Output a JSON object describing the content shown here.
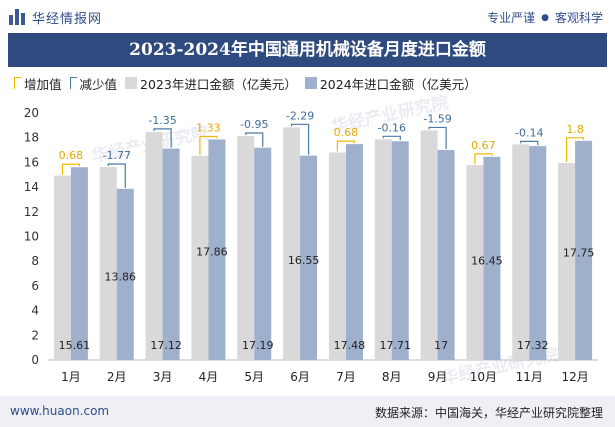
{
  "header": {
    "brand": "华经情报网",
    "tagline_1": "专业严谨",
    "tagline_2": "客观科学"
  },
  "colors": {
    "title_bg": "#2e4a7e",
    "bar_2023": "#d9d9d9",
    "bar_2024": "#9fb0cc",
    "increase": "#f2b800",
    "decrease": "#4b7ba6"
  },
  "legend": {
    "increase": "增加值",
    "decrease": "减少值",
    "series_2023": "2023年进口金额（亿美元）",
    "series_2024": "2024年进口金额（亿美元）"
  },
  "watermark": "华经产业研究院",
  "chart_data": {
    "type": "bar",
    "title": "2023-2024年中国通用机械设备月度进口金额",
    "categories": [
      "1月",
      "2月",
      "3月",
      "4月",
      "5月",
      "6月",
      "7月",
      "8月",
      "9月",
      "10月",
      "11月",
      "12月"
    ],
    "series": [
      {
        "name": "2023年进口金额（亿美元）",
        "values": [
          14.93,
          15.63,
          18.47,
          16.53,
          18.14,
          18.84,
          16.8,
          17.87,
          18.59,
          15.78,
          17.46,
          15.95
        ]
      },
      {
        "name": "2024年进口金额（亿美元）",
        "values": [
          15.61,
          13.86,
          17.12,
          17.86,
          17.19,
          16.55,
          17.48,
          17.71,
          17,
          16.45,
          17.32,
          17.75
        ]
      }
    ],
    "value_labels": [
      "15.61",
      "13.86",
      "17.12",
      "17.86",
      "17.19",
      "16.55",
      "17.48",
      "17.71",
      "17",
      "16.45",
      "17.32",
      "17.75"
    ],
    "change_labels": [
      "0.68",
      "-1.77",
      "-1.35",
      "1.33",
      "-0.95",
      "-2.29",
      "0.68",
      "-0.16",
      "-1.59",
      "0.67",
      "-0.14",
      "1.8"
    ],
    "changes": [
      0.68,
      -1.77,
      -1.35,
      1.33,
      -0.95,
      -2.29,
      0.68,
      -0.16,
      -1.59,
      0.67,
      -0.14,
      1.8
    ],
    "ylim": [
      0,
      20
    ],
    "yticks": [
      0,
      2,
      4,
      6,
      8,
      10,
      12,
      14,
      16,
      18,
      20
    ],
    "xlabel": "",
    "ylabel": ""
  },
  "footer": {
    "site": "www.huaon.com",
    "source": "数据来源：中国海关，华经产业研究院整理"
  }
}
